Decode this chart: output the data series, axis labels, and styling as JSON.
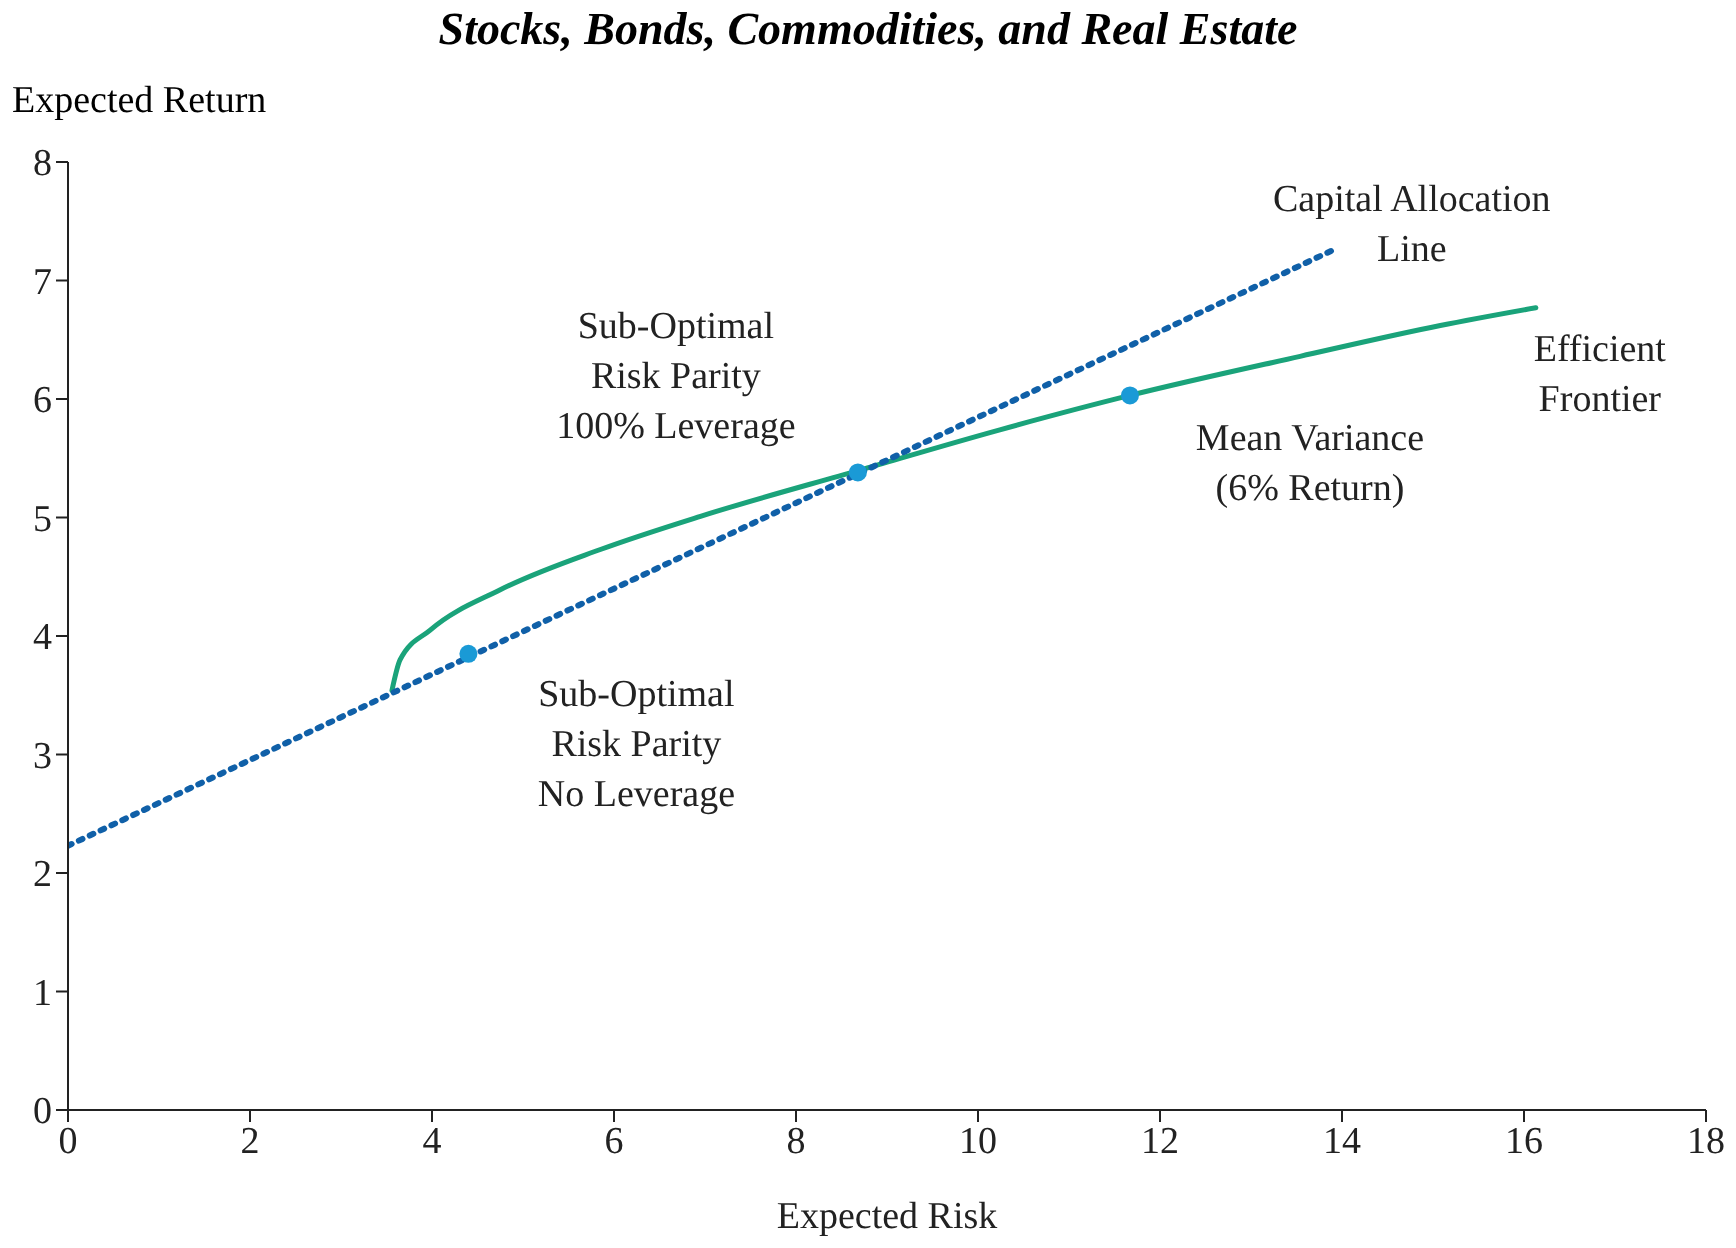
{
  "chart_data": {
    "type": "line",
    "title": "Stocks, Bonds, Commodities, and Real Estate",
    "xlabel": "Expected Risk",
    "ylabel": "Expected Return",
    "xlim": [
      0,
      18
    ],
    "xticks": [
      0,
      2,
      4,
      6,
      8,
      10,
      12,
      14,
      16,
      18
    ],
    "ylim": [
      0,
      8
    ],
    "yticks": [
      0,
      1,
      2,
      3,
      4,
      5,
      6,
      7,
      8
    ],
    "grid": false,
    "series": [
      {
        "color": "#1aa37a",
        "line_style": "solid",
        "marker": "none",
        "x": [
          3.56,
          3.65,
          3.98,
          4.75,
          5.85,
          6.95,
          8.7,
          10.24,
          11.67,
          13.54,
          15.08,
          16.13
        ],
        "values": [
          3.54,
          3.8,
          4.05,
          4.39,
          4.73,
          5.01,
          5.4,
          5.74,
          6.03,
          6.36,
          6.62,
          6.77
        ]
      },
      {
        "color": "#1060a8",
        "line_style": "dotted",
        "marker": "none",
        "x": [
          0,
          13.91
        ],
        "values": [
          2.23,
          7.26
        ]
      },
      {
        "type": "scatter",
        "color": "#1a9ad6",
        "marker": "circle",
        "x": [
          4.4,
          8.68,
          11.67
        ],
        "values": [
          3.85,
          5.38,
          6.03
        ]
      }
    ],
    "annotations": [
      {
        "text": "Capital Allocation\nLine",
        "x": 13.91,
        "y": 7.26
      },
      {
        "text": "Efficient\nFrontier",
        "x": 16.13,
        "y": 6.77
      },
      {
        "text": "Sub-Optimal\nRisk Parity\n100% Leverage",
        "x": 8.68,
        "y": 5.38
      },
      {
        "text": "Mean Variance\n(6% Return)",
        "x": 11.67,
        "y": 6.03
      },
      {
        "text": "Sub-Optimal\nRisk Parity\nNo Leverage",
        "x": 4.4,
        "y": 3.85
      }
    ]
  }
}
